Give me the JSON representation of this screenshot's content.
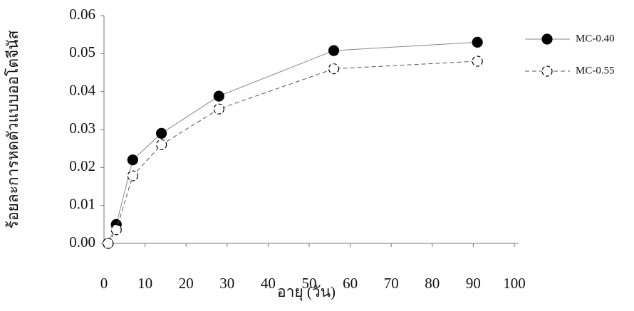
{
  "chart_data": {
    "type": "line",
    "x_label": "อายุ (วัน)",
    "y_label": "ร้อยละการหดตัวแบบออโตจีนัส",
    "x": [
      1,
      3,
      7,
      14,
      28,
      56,
      91
    ],
    "series": [
      {
        "name": "MC-0.40",
        "color": "#000000",
        "marker": "filled",
        "dashed": false,
        "values": [
          0,
          0.005,
          0.022,
          0.029,
          0.0388,
          0.0508,
          0.053
        ]
      },
      {
        "name": "MC-0.55",
        "color": "#000000",
        "marker": "open-dashed",
        "dashed": true,
        "values": [
          0,
          0.0036,
          0.0178,
          0.026,
          0.0354,
          0.046,
          0.048
        ]
      }
    ],
    "xlim": [
      0,
      100
    ],
    "xticks": [
      0,
      10,
      20,
      30,
      40,
      50,
      60,
      70,
      80,
      90,
      100
    ],
    "ylim": [
      0,
      0.06
    ],
    "yticks": [
      {
        "value": 0,
        "label": "0.00"
      },
      {
        "value": 0.01,
        "label": "0.01"
      },
      {
        "value": 0.02,
        "label": "0.02"
      },
      {
        "value": 0.03,
        "label": "0.03"
      },
      {
        "value": 0.04,
        "label": "0.04"
      },
      {
        "value": 0.05,
        "label": "0.05"
      },
      {
        "value": 0.06,
        "label": "0.06"
      }
    ],
    "grid": false,
    "legend": "right"
  }
}
